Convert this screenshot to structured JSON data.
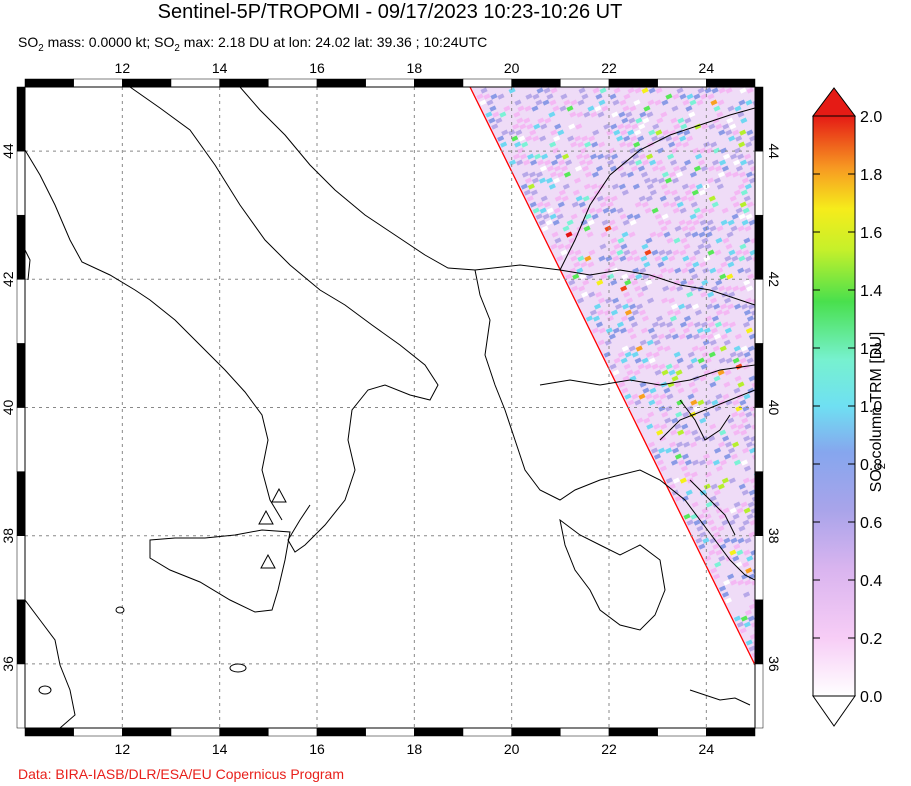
{
  "header": {
    "title": "Sentinel-5P/TROPOMI - 09/17/2023 10:23-10:26 UT",
    "subtitle_parts": {
      "so2_a": "SO",
      "sub_a": "2",
      "mass": " mass: 0.0000 kt; SO",
      "sub_b": "2",
      "rest": " max: 2.18 DU at lon: 24.02 lat: 39.36 ; 10:24UTC"
    }
  },
  "map": {
    "lon_ticks": [
      12,
      14,
      16,
      18,
      20,
      22,
      24
    ],
    "lat_ticks": [
      36,
      38,
      40,
      42,
      44
    ],
    "lon_range": [
      10,
      25
    ],
    "lat_range": [
      35,
      45
    ],
    "gridlines": true,
    "volcano_markers": [
      "triangle-icon",
      "triangle-icon",
      "triangle-icon"
    ],
    "swath_edge_color": "#ff0000"
  },
  "colorbar": {
    "ticks": [
      "0.0",
      "0.2",
      "0.4",
      "0.6",
      "0.8",
      "1.0",
      "1.2",
      "1.4",
      "1.6",
      "1.8",
      "2.0"
    ],
    "label_main": "SO",
    "label_sub": "2",
    "label_rest": " column TRM [DU]",
    "colors": [
      "#ffffff",
      "#f4b8f4",
      "#b7a8e8",
      "#8a9ae6",
      "#6fd7f2",
      "#7cf2d6",
      "#58e858",
      "#b6ef2e",
      "#f5f01a",
      "#f8a020",
      "#f24418",
      "#e41212"
    ]
  },
  "footer": {
    "credit": "Data: BIRA-IASB/DLR/ESA/EU Copernicus Program"
  }
}
